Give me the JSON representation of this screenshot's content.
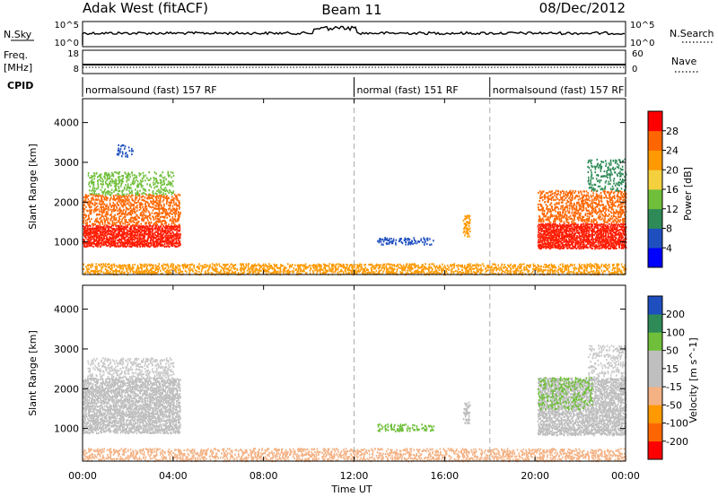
{
  "header": {
    "site": "Adak West (fitACF)",
    "beam": "Beam 11",
    "date": "08/Dec/2012"
  },
  "status": {
    "nsky_label": "N.Sky",
    "nsky_ticks": [
      "10^5",
      "10^0"
    ],
    "nsearch_label": "N.Search",
    "nsearch_ticks": [
      "10^5",
      "10^0"
    ],
    "freq_label": "Freq.",
    "freq_unit": "[MHz]",
    "freq_ticks": [
      "18",
      "8"
    ],
    "nave_label": "Nave",
    "nave_ticks": [
      "60",
      "0"
    ],
    "cpid_label": "CPID",
    "cpid_segments": [
      {
        "label": "normalsound (fast) 157 RF",
        "start_h": 0,
        "end_h": 12
      },
      {
        "label": "normal (fast) 151 RF",
        "start_h": 12,
        "end_h": 18
      },
      {
        "label": "normalsound (fast) 157 RF",
        "start_h": 18,
        "end_h": 24
      }
    ]
  },
  "chart_data": [
    {
      "type": "heatmap",
      "parameter": "Power",
      "ylabel": "Slant Range [km]",
      "xlim": [
        0,
        24
      ],
      "ylim": [
        180,
        4600
      ],
      "yticks": [
        1000,
        2000,
        3000,
        4000
      ],
      "colorbar_label": "Power [dB]",
      "colorbar_ticks": [
        "28",
        "24",
        "20",
        "16",
        "12",
        "8",
        "4"
      ],
      "colorbar_colors": [
        "#0000ff",
        "#1f4fbf",
        "#2e8b57",
        "#6fbf3a",
        "#f4d03f",
        "#ff9900",
        "#ff6600",
        "#ff0000"
      ],
      "regions": [
        {
          "t0": 0.0,
          "t1": 4.3,
          "r0": 900,
          "r1": 1450,
          "color": "#ff1a00",
          "density": 0.9
        },
        {
          "t0": 0.0,
          "t1": 4.3,
          "r0": 1450,
          "r1": 2200,
          "color": "#ff6600",
          "density": 0.5
        },
        {
          "t0": 0.2,
          "t1": 4.0,
          "r0": 2200,
          "r1": 2800,
          "color": "#6fbf3a",
          "density": 0.35
        },
        {
          "t0": 1.5,
          "t1": 2.2,
          "r0": 3150,
          "r1": 3450,
          "color": "#1f4fbf",
          "density": 0.3
        },
        {
          "t0": 0.0,
          "t1": 24.0,
          "r0": 200,
          "r1": 480,
          "color": "#ff9900",
          "density": 0.55
        },
        {
          "t0": 13.0,
          "t1": 15.5,
          "r0": 950,
          "r1": 1150,
          "color": "#1f4fbf",
          "density": 0.4
        },
        {
          "t0": 16.8,
          "t1": 17.1,
          "r0": 1150,
          "r1": 1700,
          "color": "#ff9900",
          "density": 0.6
        },
        {
          "t0": 20.1,
          "t1": 24.0,
          "r0": 850,
          "r1": 1500,
          "color": "#ff1a00",
          "density": 0.9
        },
        {
          "t0": 20.1,
          "t1": 24.0,
          "r0": 1500,
          "r1": 2300,
          "color": "#ff6600",
          "density": 0.5
        },
        {
          "t0": 22.3,
          "t1": 24.0,
          "r0": 2300,
          "r1": 3100,
          "color": "#2e8b57",
          "density": 0.3
        }
      ]
    },
    {
      "type": "heatmap",
      "parameter": "Velocity",
      "ylabel": "Slant Range [km]",
      "xlabel": "Time UT",
      "xlim": [
        0,
        24
      ],
      "ylim": [
        180,
        4600
      ],
      "xticks": [
        "00:00",
        "04:00",
        "08:00",
        "12:00",
        "16:00",
        "20:00",
        "00:00"
      ],
      "yticks": [
        1000,
        2000,
        3000,
        4000
      ],
      "colorbar_label": "Velocity [m s^-1]",
      "colorbar_ticks": [
        "200",
        "100",
        "50",
        "15",
        "-15",
        "-50",
        "-100",
        "-200"
      ],
      "colorbar_colors": [
        "#ff0000",
        "#ff6600",
        "#ff9900",
        "#f4b183",
        "#bfbfbf",
        "#bfbfbf",
        "#6fbf3a",
        "#2e8b57",
        "#1f4fbf"
      ],
      "regions": [
        {
          "t0": 0.0,
          "t1": 4.3,
          "r0": 900,
          "r1": 2300,
          "color": "#bdbdbd",
          "density": 0.75
        },
        {
          "t0": 0.2,
          "t1": 4.0,
          "r0": 2300,
          "r1": 2800,
          "color": "#c8c8c8",
          "density": 0.4
        },
        {
          "t0": 0.0,
          "t1": 24.0,
          "r0": 200,
          "r1": 500,
          "color": "#f4b183",
          "density": 0.45
        },
        {
          "t0": 13.0,
          "t1": 15.5,
          "r0": 950,
          "r1": 1150,
          "color": "#6fbf3a",
          "density": 0.4
        },
        {
          "t0": 16.8,
          "t1": 17.1,
          "r0": 1150,
          "r1": 1700,
          "color": "#bdbdbd",
          "density": 0.6
        },
        {
          "t0": 20.1,
          "t1": 24.0,
          "r0": 850,
          "r1": 2300,
          "color": "#bdbdbd",
          "density": 0.75
        },
        {
          "t0": 20.1,
          "t1": 22.5,
          "r0": 1500,
          "r1": 2300,
          "color": "#6fbf3a",
          "density": 0.3
        },
        {
          "t0": 22.3,
          "t1": 24.0,
          "r0": 2300,
          "r1": 3100,
          "color": "#c8c8c8",
          "density": 0.3
        }
      ]
    }
  ]
}
